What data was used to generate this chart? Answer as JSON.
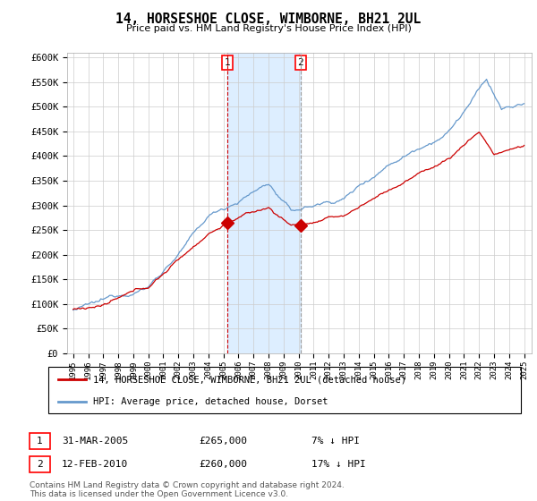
{
  "title": "14, HORSESHOE CLOSE, WIMBORNE, BH21 2UL",
  "subtitle": "Price paid vs. HM Land Registry's House Price Index (HPI)",
  "ylabel_ticks": [
    "£0",
    "£50K",
    "£100K",
    "£150K",
    "£200K",
    "£250K",
    "£300K",
    "£350K",
    "£400K",
    "£450K",
    "£500K",
    "£550K",
    "£600K"
  ],
  "ylim": [
    0,
    610000
  ],
  "ytick_vals": [
    0,
    50000,
    100000,
    150000,
    200000,
    250000,
    300000,
    350000,
    400000,
    450000,
    500000,
    550000,
    600000
  ],
  "sale1_x": 2005.25,
  "sale1_price": 265000,
  "sale2_x": 2010.12,
  "sale2_price": 260000,
  "red_color": "#cc0000",
  "blue_color": "#6699cc",
  "span_color": "#ddeeff",
  "legend1_label": "14, HORSESHOE CLOSE, WIMBORNE, BH21 2UL (detached house)",
  "legend2_label": "HPI: Average price, detached house, Dorset",
  "footnote": "Contains HM Land Registry data © Crown copyright and database right 2024.\nThis data is licensed under the Open Government Licence v3.0."
}
